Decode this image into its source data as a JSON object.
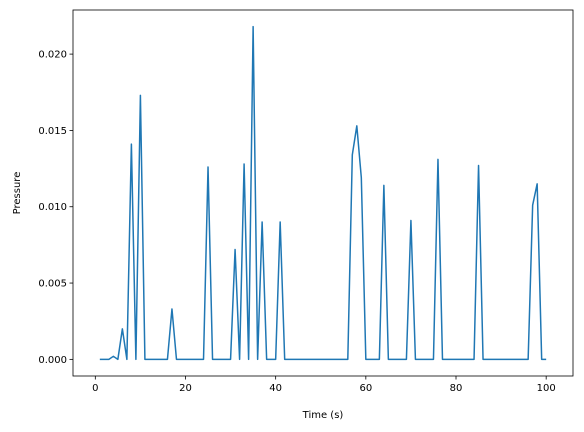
{
  "chart_data": {
    "type": "line",
    "title": "",
    "xlabel": "Time (s)",
    "ylabel": "Pressure",
    "xlim": [
      -4.95,
      105.95
    ],
    "ylim": [
      -0.00109,
      0.02289
    ],
    "xticks": [
      0,
      20,
      40,
      60,
      80,
      100
    ],
    "xtick_labels": [
      "0",
      "20",
      "40",
      "60",
      "80",
      "100"
    ],
    "yticks": [
      0.0,
      0.005,
      0.01,
      0.015,
      0.02
    ],
    "ytick_labels": [
      "0.000",
      "0.005",
      "0.010",
      "0.015",
      "0.020"
    ],
    "grid": false,
    "legend": "none",
    "series": [
      {
        "color": "#1f77b4",
        "x": [
          1,
          2,
          3,
          4,
          5,
          6,
          7,
          8,
          9,
          10,
          11,
          12,
          13,
          14,
          15,
          16,
          17,
          18,
          19,
          20,
          21,
          22,
          23,
          24,
          25,
          26,
          27,
          28,
          29,
          30,
          31,
          32,
          33,
          34,
          35,
          36,
          37,
          38,
          39,
          40,
          41,
          42,
          43,
          44,
          45,
          46,
          47,
          48,
          49,
          50,
          51,
          52,
          53,
          54,
          55,
          56,
          57,
          58,
          59,
          60,
          61,
          62,
          63,
          64,
          65,
          66,
          67,
          68,
          69,
          70,
          71,
          72,
          73,
          74,
          75,
          76,
          77,
          78,
          79,
          80,
          81,
          82,
          83,
          84,
          85,
          86,
          87,
          88,
          89,
          90,
          91,
          92,
          93,
          94,
          95,
          96,
          97,
          98,
          99,
          100
        ],
        "values": [
          0,
          0,
          0,
          0.0002,
          0,
          0.002,
          0,
          0.0141,
          0,
          0.0173,
          0,
          0,
          0,
          0,
          0,
          0,
          0.0033,
          0,
          0,
          0,
          0,
          0,
          0,
          0,
          0.0126,
          0,
          0,
          0,
          0,
          0,
          0.0072,
          0,
          0.0128,
          0,
          0.0218,
          0,
          0.009,
          0,
          0,
          0,
          0.009,
          0,
          0,
          0,
          0,
          0,
          0,
          0,
          0,
          0,
          0,
          0,
          0,
          0,
          0,
          0,
          0.0134,
          0.0153,
          0.0119,
          0,
          0,
          0,
          0,
          0.0114,
          0,
          0,
          0,
          0,
          0,
          0.0091,
          0,
          0,
          0,
          0,
          0,
          0.0131,
          0,
          0,
          0,
          0,
          0,
          0,
          0,
          0,
          0.0127,
          0,
          0,
          0,
          0,
          0,
          0,
          0,
          0,
          0,
          0,
          0,
          0.0101,
          0.0115,
          0,
          0
        ]
      }
    ]
  }
}
